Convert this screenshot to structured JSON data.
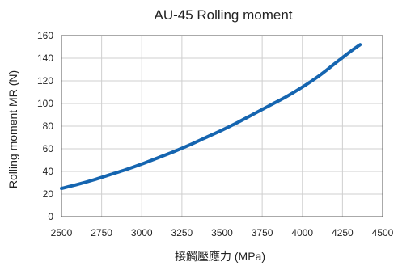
{
  "chart_data": {
    "type": "line",
    "title": "AU-45 Rolling moment",
    "xlabel": "接觸壓應力 (MPa)",
    "ylabel": "Rolling moment MR (N)",
    "xlim": [
      2500,
      4500
    ],
    "ylim": [
      0,
      160
    ],
    "x_ticks": [
      2500,
      2750,
      3000,
      3250,
      3500,
      3750,
      4000,
      4250,
      4500
    ],
    "y_ticks": [
      0,
      20,
      40,
      60,
      80,
      100,
      120,
      140,
      160
    ],
    "grid": true,
    "legend": "none",
    "series": [
      {
        "color": "#1565b0",
        "x": [
          2500,
          2600,
          2700,
          2800,
          2900,
          3000,
          3100,
          3200,
          3300,
          3400,
          3500,
          3600,
          3700,
          3800,
          3900,
          4000,
          4100,
          4200,
          4300,
          4360
        ],
        "y": [
          25,
          28.5,
          32.5,
          37,
          41.5,
          46.5,
          52,
          57.5,
          63.5,
          70,
          76.5,
          83.5,
          91,
          98.5,
          106,
          114.5,
          124,
          135,
          146,
          152
        ]
      }
    ]
  }
}
